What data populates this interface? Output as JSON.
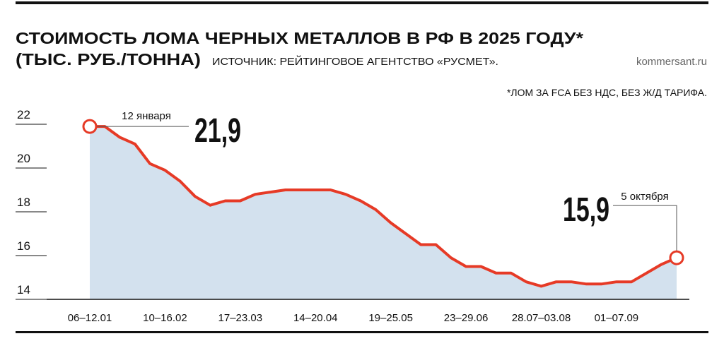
{
  "chart_data": {
    "type": "area",
    "title": "СТОИМОСТЬ ЛОМА ЧЕРНЫХ МЕТАЛЛОВ В РФ В 2025 ГОДУ*",
    "subtitle": "(ТЫС. РУБ./ТОННА)",
    "source": "ИСТОЧНИК: РЕЙТИНГОВОЕ АГЕНТСТВО «РУСМЕТ».",
    "brand": "kommersant.ru",
    "footnote": "*ЛОМ ЗА FCA БЕЗ НДС, БЕЗ Ж/Д ТАРИФА.",
    "categories": [
      "06–12.01",
      null,
      null,
      null,
      null,
      "10–16.02",
      null,
      null,
      null,
      null,
      "17–23.03",
      null,
      null,
      null,
      null,
      "14–20.04",
      null,
      null,
      null,
      null,
      "19–25.05",
      null,
      null,
      null,
      null,
      "23–29.06",
      null,
      null,
      null,
      null,
      "28.07–03.08",
      null,
      null,
      null,
      null,
      "01–07.09",
      null,
      null,
      null,
      null
    ],
    "values": [
      21.9,
      21.9,
      21.4,
      21.1,
      20.2,
      19.9,
      19.4,
      18.7,
      18.3,
      18.5,
      18.5,
      18.8,
      18.9,
      19.0,
      19.0,
      19.0,
      19.0,
      18.8,
      18.5,
      18.1,
      17.5,
      17.0,
      16.5,
      16.5,
      15.9,
      15.5,
      15.5,
      15.2,
      15.2,
      14.8,
      14.6,
      14.8,
      14.8,
      14.7,
      14.7,
      14.8,
      14.8,
      15.2,
      15.6,
      15.9
    ],
    "color": "#e63a26",
    "fill_color": "#d3e1ee",
    "ylim": [
      14,
      22
    ],
    "yticks": [
      14,
      16,
      18,
      20,
      22
    ],
    "annotations": [
      {
        "index": 0,
        "date": "12 января",
        "value_label": "21,9"
      },
      {
        "index": 39,
        "date": "5 октября",
        "value_label": "15,9"
      }
    ]
  }
}
